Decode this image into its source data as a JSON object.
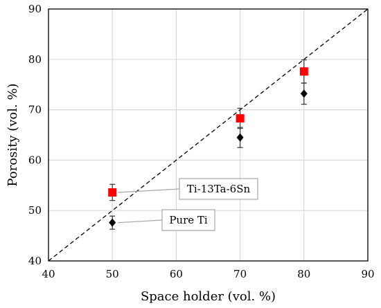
{
  "chart_data": {
    "type": "scatter",
    "xlabel": "Space holder (vol. %)",
    "ylabel": "Porosity (vol. %)",
    "xlim": [
      40,
      90
    ],
    "ylim": [
      40,
      90
    ],
    "xticks": [
      "40",
      "50",
      "60",
      "70",
      "80",
      "90"
    ],
    "yticks": [
      "40",
      "50",
      "60",
      "70",
      "80",
      "90"
    ],
    "grid": true,
    "reference_line": {
      "from": [
        40,
        40
      ],
      "to": [
        90,
        90
      ],
      "style": "dashed"
    },
    "series": [
      {
        "name": "Ti-13Ta-6Sn",
        "marker": "square",
        "color": "#ff0000",
        "points": [
          {
            "x": 50,
            "y": 53.6,
            "err": 1.6
          },
          {
            "x": 70,
            "y": 68.3,
            "err": 2.0
          },
          {
            "x": 80,
            "y": 77.6,
            "err": 2.3
          }
        ]
      },
      {
        "name": "Pure Ti",
        "marker": "diamond",
        "color": "#000000",
        "points": [
          {
            "x": 50,
            "y": 47.6,
            "err": 1.3
          },
          {
            "x": 70,
            "y": 64.5,
            "err": 2.0
          },
          {
            "x": 80,
            "y": 73.2,
            "err": 2.1
          }
        ]
      }
    ],
    "annotations": [
      {
        "text": "Ti-13Ta-6Sn",
        "series": 0,
        "point": 0
      },
      {
        "text": "Pure Ti",
        "series": 1,
        "point": 0
      }
    ]
  }
}
